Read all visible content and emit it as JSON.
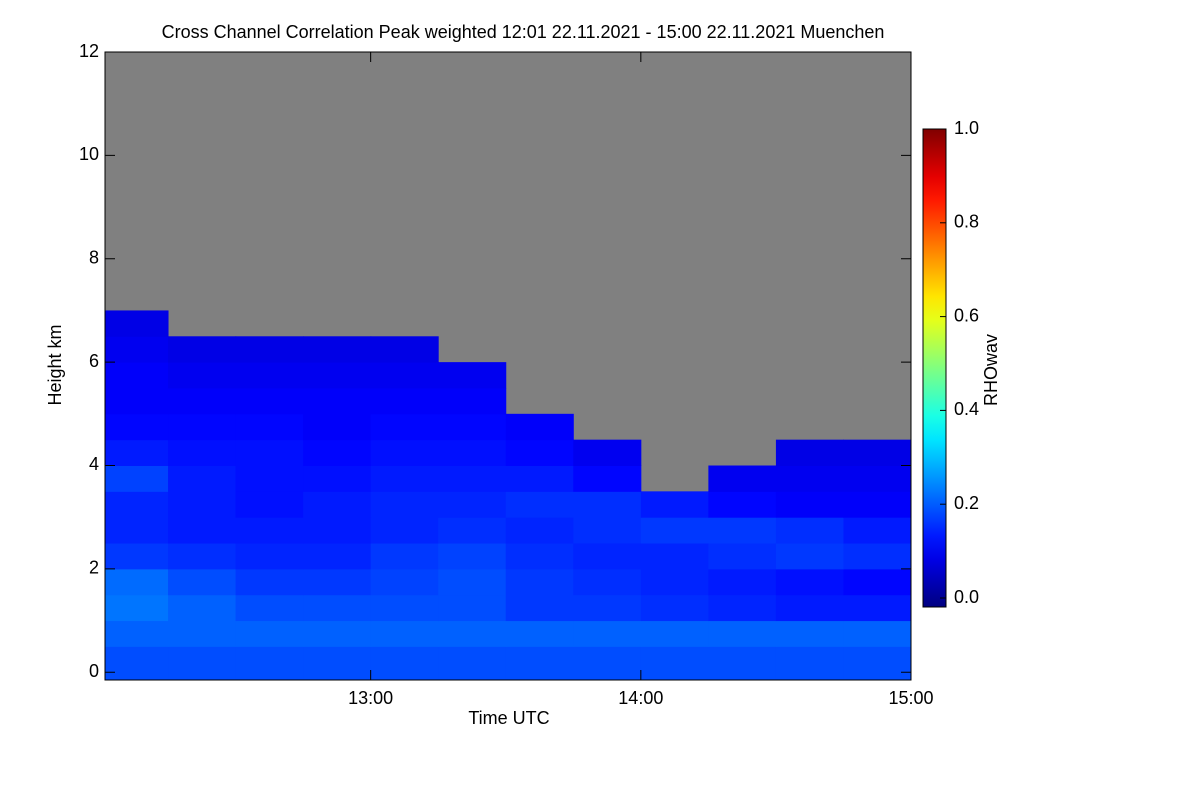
{
  "chart_data": {
    "type": "heatmap",
    "title": "Cross Channel Correlation Peak weighted   12:01 22.11.2021 - 15:00 22.11.2021 Muenchen",
    "x_label": "Time UTC",
    "y_label": "Height km",
    "colorbar_label": "RHOwav",
    "colormap": "jet",
    "missing_color": "#808080",
    "xlim": [
      12.0167,
      15.0
    ],
    "xticks": [
      {
        "value": 13,
        "label": "13:00"
      },
      {
        "value": 14,
        "label": "14:00"
      },
      {
        "value": 15,
        "label": "15:00"
      }
    ],
    "ylim": [
      -0.15,
      12
    ],
    "yticks": [
      0,
      2,
      4,
      6,
      8,
      10,
      12
    ],
    "clim": [
      0,
      1
    ],
    "cticks": [
      {
        "value": 0,
        "label": "0.0"
      },
      {
        "value": 0.2,
        "label": "0.2"
      },
      {
        "value": 0.4,
        "label": "0.4"
      },
      {
        "value": 0.6,
        "label": "0.6"
      },
      {
        "value": 0.8,
        "label": "0.8"
      },
      {
        "value": 1,
        "label": "1.0"
      }
    ],
    "xbins": [
      12.0167,
      12.25,
      12.5,
      12.75,
      13,
      13.25,
      13.5,
      13.75,
      14,
      14.25,
      14.5,
      14.75,
      15
    ],
    "ybins": [
      -0.15,
      0.5,
      1,
      1.5,
      2,
      2.5,
      3,
      3.5,
      4,
      4.5,
      5,
      5.5,
      6,
      6.5,
      7,
      7.5,
      8
    ],
    "z": [
      [
        0.2,
        0.2,
        0.2,
        0.2,
        0.2,
        0.2,
        0.2,
        0.2,
        0.2,
        0.2,
        0.2,
        0.2
      ],
      [
        0.22,
        0.22,
        0.22,
        0.22,
        0.22,
        0.22,
        0.22,
        0.22,
        0.22,
        0.22,
        0.22,
        0.22
      ],
      [
        0.24,
        0.22,
        0.2,
        0.2,
        0.2,
        0.2,
        0.18,
        0.18,
        0.17,
        0.16,
        0.15,
        0.15
      ],
      [
        0.23,
        0.2,
        0.18,
        0.18,
        0.19,
        0.2,
        0.18,
        0.17,
        0.16,
        0.15,
        0.14,
        0.13
      ],
      [
        0.18,
        0.17,
        0.16,
        0.16,
        0.18,
        0.19,
        0.17,
        0.16,
        0.16,
        0.17,
        0.18,
        0.17
      ],
      [
        0.16,
        0.15,
        0.15,
        0.15,
        0.16,
        0.17,
        0.16,
        0.17,
        0.18,
        0.18,
        0.17,
        0.15
      ],
      [
        0.16,
        0.15,
        0.14,
        0.15,
        0.16,
        0.16,
        0.17,
        0.17,
        0.15,
        0.13,
        0.12,
        0.12
      ],
      [
        0.19,
        0.15,
        0.14,
        0.14,
        0.15,
        0.15,
        0.15,
        0.13,
        null,
        0.11,
        0.11,
        0.11
      ],
      [
        0.15,
        0.14,
        0.14,
        0.13,
        0.14,
        0.14,
        0.13,
        0.11,
        null,
        null,
        0.1,
        0.1
      ],
      [
        0.13,
        0.13,
        0.13,
        0.12,
        0.13,
        0.13,
        0.12,
        null,
        null,
        null,
        null,
        null
      ],
      [
        0.12,
        0.12,
        0.12,
        0.12,
        0.12,
        0.12,
        null,
        null,
        null,
        null,
        null,
        null
      ],
      [
        0.12,
        0.11,
        0.11,
        0.11,
        0.11,
        0.11,
        null,
        null,
        null,
        null,
        null,
        null
      ],
      [
        0.11,
        0.1,
        0.1,
        0.1,
        0.1,
        null,
        null,
        null,
        null,
        null,
        null,
        null
      ],
      [
        0.1,
        null,
        null,
        null,
        null,
        null,
        null,
        null,
        null,
        null,
        null,
        null
      ],
      [
        null,
        null,
        null,
        null,
        null,
        null,
        null,
        null,
        null,
        null,
        null,
        null
      ],
      [
        null,
        null,
        null,
        null,
        null,
        null,
        null,
        null,
        null,
        null,
        null,
        null
      ]
    ]
  }
}
